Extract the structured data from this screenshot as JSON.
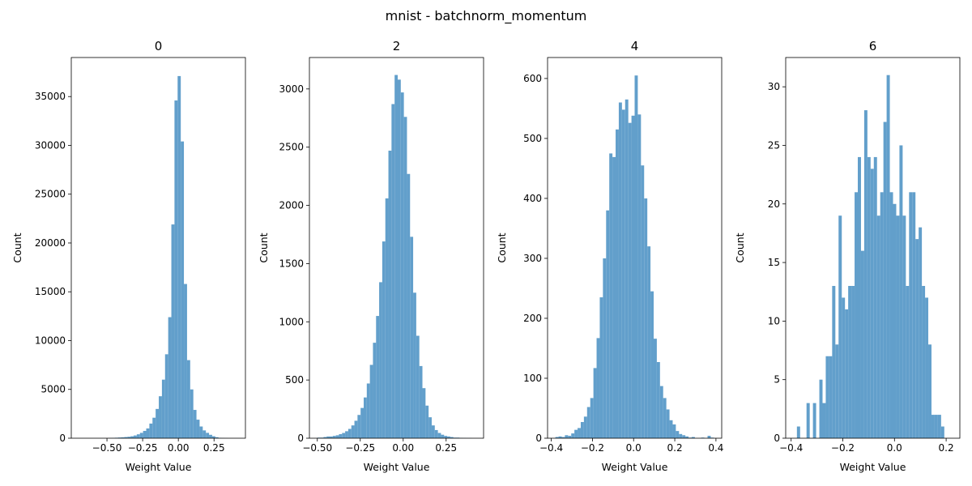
{
  "figure": {
    "suptitle": "mnist - batchnorm_momentum"
  },
  "colors": {
    "bar": "#629fcb",
    "axes": "#000000"
  },
  "chart_data": [
    {
      "type": "bar",
      "title": "0",
      "xlabel": "Weight Value",
      "ylabel": "Count",
      "xlim": [
        -0.75,
        0.47
      ],
      "ylim": [
        0,
        39000
      ],
      "xticks": [
        -0.5,
        -0.25,
        0.0,
        0.25
      ],
      "xtick_labels": [
        "−0.50",
        "−0.25",
        "0.00",
        "0.25"
      ],
      "yticks": [
        0,
        5000,
        10000,
        15000,
        20000,
        25000,
        30000,
        35000
      ],
      "ytick_labels": [
        "0",
        "5000",
        "10000",
        "15000",
        "20000",
        "25000",
        "30000",
        "35000"
      ],
      "bin_edges": [
        -0.665,
        -0.643,
        -0.621,
        -0.599,
        -0.577,
        -0.555,
        -0.533,
        -0.511,
        -0.489,
        -0.467,
        -0.445,
        -0.423,
        -0.401,
        -0.379,
        -0.357,
        -0.335,
        -0.313,
        -0.291,
        -0.269,
        -0.247,
        -0.225,
        -0.203,
        -0.181,
        -0.159,
        -0.137,
        -0.115,
        -0.093,
        -0.071,
        -0.049,
        -0.027,
        -0.005,
        0.017,
        0.039,
        0.061,
        0.083,
        0.105,
        0.127,
        0.149,
        0.171,
        0.193,
        0.215,
        0.237,
        0.259,
        0.281,
        0.303,
        0.325,
        0.347,
        0.369,
        0.391,
        0.413,
        0.435
      ],
      "counts": [
        0,
        0,
        0,
        0,
        0,
        0,
        0,
        0,
        20,
        30,
        50,
        70,
        90,
        120,
        150,
        200,
        280,
        400,
        550,
        750,
        1000,
        1500,
        2100,
        3000,
        4300,
        6000,
        8600,
        12400,
        21900,
        34600,
        37100,
        30400,
        15800,
        8000,
        5000,
        2900,
        1900,
        1200,
        800,
        550,
        350,
        200,
        100,
        40,
        20,
        10,
        0,
        0,
        0,
        0
      ]
    },
    {
      "type": "bar",
      "title": "2",
      "xlabel": "Weight Value",
      "ylabel": "Count",
      "xlim": [
        -0.546,
        0.468
      ],
      "ylim": [
        0,
        3270
      ],
      "xticks": [
        -0.5,
        -0.25,
        0.0,
        0.25
      ],
      "xtick_labels": [
        "−0.50",
        "−0.25",
        "0.00",
        "0.25"
      ],
      "yticks": [
        0,
        500,
        1000,
        1500,
        2000,
        2500,
        3000
      ],
      "ytick_labels": [
        "0",
        "500",
        "1000",
        "1500",
        "2000",
        "2500",
        "3000"
      ],
      "bin_edges": [
        -0.5,
        -0.482,
        -0.464,
        -0.446,
        -0.428,
        -0.41,
        -0.392,
        -0.374,
        -0.356,
        -0.338,
        -0.32,
        -0.302,
        -0.284,
        -0.266,
        -0.248,
        -0.23,
        -0.212,
        -0.194,
        -0.176,
        -0.158,
        -0.14,
        -0.122,
        -0.104,
        -0.086,
        -0.068,
        -0.05,
        -0.032,
        -0.014,
        0.004,
        0.022,
        0.04,
        0.058,
        0.076,
        0.094,
        0.112,
        0.13,
        0.148,
        0.166,
        0.184,
        0.202,
        0.22,
        0.238,
        0.256,
        0.274,
        0.292,
        0.31,
        0.328,
        0.346,
        0.364,
        0.382,
        0.4
      ],
      "counts": [
        5,
        5,
        10,
        15,
        15,
        20,
        25,
        35,
        45,
        60,
        80,
        110,
        150,
        200,
        260,
        350,
        470,
        630,
        820,
        1050,
        1340,
        1690,
        2060,
        2470,
        2870,
        3120,
        3080,
        2970,
        2760,
        2270,
        1730,
        1250,
        880,
        620,
        430,
        280,
        180,
        110,
        70,
        45,
        30,
        20,
        15,
        10,
        5,
        5,
        3,
        2,
        1,
        1
      ]
    },
    {
      "type": "bar",
      "title": "4",
      "xlabel": "Weight Value",
      "ylabel": "Count",
      "xlim": [
        -0.418,
        0.428
      ],
      "ylim": [
        0,
        635
      ],
      "xticks": [
        -0.4,
        -0.2,
        0.0,
        0.2,
        0.4
      ],
      "xtick_labels": [
        "−0.4",
        "−0.2",
        "0.0",
        "0.2",
        "0.4"
      ],
      "yticks": [
        0,
        100,
        200,
        300,
        400,
        500,
        600
      ],
      "ytick_labels": [
        "0",
        "100",
        "200",
        "300",
        "400",
        "500",
        "600"
      ],
      "bin_edges": [
        -0.38,
        -0.3646,
        -0.3492,
        -0.3338,
        -0.3184,
        -0.303,
        -0.2876,
        -0.2722,
        -0.2568,
        -0.2414,
        -0.226,
        -0.2106,
        -0.1952,
        -0.1798,
        -0.1644,
        -0.149,
        -0.1336,
        -0.1182,
        -0.1028,
        -0.0874,
        -0.072,
        -0.0566,
        -0.0412,
        -0.0258,
        -0.0104,
        0.005,
        0.0204,
        0.0358,
        0.0512,
        0.0666,
        0.082,
        0.0974,
        0.1128,
        0.1282,
        0.1436,
        0.159,
        0.1744,
        0.1898,
        0.2052,
        0.2206,
        0.236,
        0.2514,
        0.2668,
        0.2822,
        0.2976,
        0.313,
        0.3284,
        0.3438,
        0.3592,
        0.3746,
        0.39
      ],
      "counts": [
        2,
        3,
        2,
        5,
        4,
        8,
        14,
        17,
        27,
        36,
        52,
        67,
        117,
        167,
        235,
        300,
        380,
        475,
        469,
        515,
        560,
        548,
        565,
        526,
        538,
        605,
        540,
        455,
        400,
        320,
        245,
        166,
        127,
        87,
        67,
        48,
        30,
        23,
        12,
        7,
        5,
        3,
        1,
        2,
        0,
        0,
        1,
        0,
        4,
        1
      ]
    },
    {
      "type": "bar",
      "title": "6",
      "xlabel": "Weight Value",
      "ylabel": "Count",
      "xlim": [
        -0.421,
        0.253
      ],
      "ylim": [
        0,
        32.5
      ],
      "xticks": [
        -0.4,
        -0.2,
        0.0,
        0.2
      ],
      "xtick_labels": [
        "−0.4",
        "−0.2",
        "0.0",
        "0.2"
      ],
      "yticks": [
        0,
        5,
        10,
        15,
        20,
        25,
        30
      ],
      "ytick_labels": [
        "0",
        "5",
        "10",
        "15",
        "20",
        "25",
        "30"
      ],
      "bin_edges": [
        -0.39,
        -0.3776,
        -0.3652,
        -0.3528,
        -0.3404,
        -0.328,
        -0.3156,
        -0.3032,
        -0.2908,
        -0.2784,
        -0.266,
        -0.2536,
        -0.2412,
        -0.2288,
        -0.2164,
        -0.204,
        -0.1916,
        -0.1792,
        -0.1668,
        -0.1544,
        -0.142,
        -0.1296,
        -0.1172,
        -0.1048,
        -0.0924,
        -0.08,
        -0.0676,
        -0.0552,
        -0.0428,
        -0.0304,
        -0.018,
        -0.0056,
        0.0068,
        0.0192,
        0.0316,
        0.044,
        0.0564,
        0.0688,
        0.0812,
        0.0936,
        0.106,
        0.1184,
        0.1308,
        0.1432,
        0.1556,
        0.168,
        0.1804,
        0.1928,
        0.2052,
        0.2176,
        0.23
      ],
      "counts": [
        0,
        1,
        0,
        0,
        3,
        0,
        3,
        0,
        5,
        3,
        7,
        7,
        13,
        8,
        19,
        12,
        11,
        13,
        13,
        21,
        24,
        16,
        28,
        24,
        23,
        24,
        19,
        21,
        27,
        31,
        21,
        20,
        19,
        25,
        19,
        13,
        21,
        21,
        17,
        18,
        13,
        12,
        8,
        2,
        2,
        2,
        1,
        0,
        0,
        0
      ]
    }
  ]
}
